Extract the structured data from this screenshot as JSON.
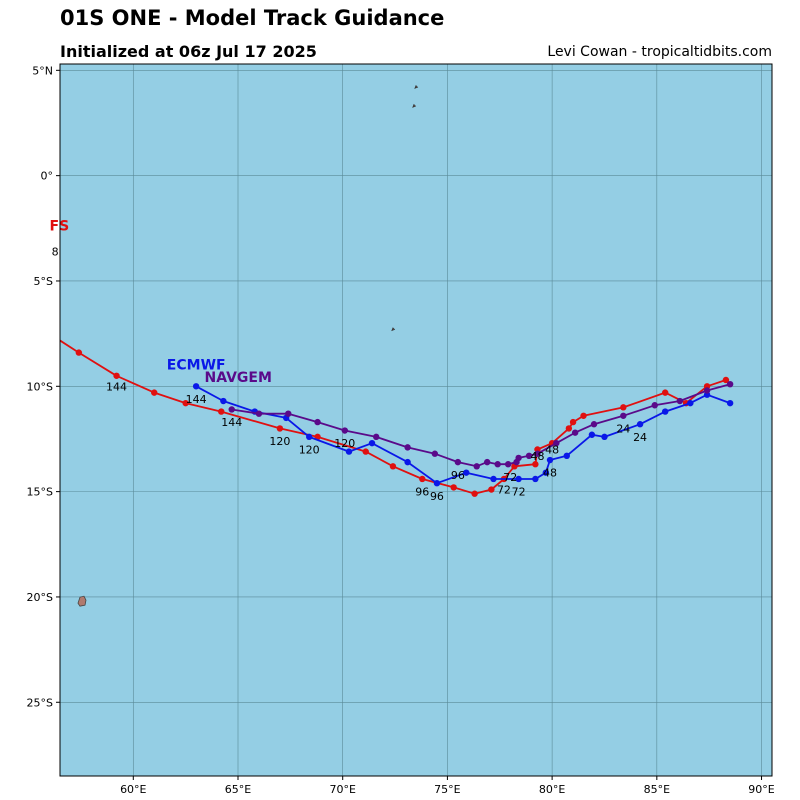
{
  "header": {
    "title": "01S ONE - Model Track Guidance",
    "subtitle": "Initialized at 06z Jul 17 2025",
    "credit": "Levi Cowan - tropicaltidbits.com"
  },
  "colors": {
    "ocean": "#94cee4",
    "grid": "#5a8a98",
    "land": "#b07a6e",
    "gfs": "#e01010",
    "ecmwf": "#0a18e8",
    "navgem": "#5a0a8a"
  },
  "map": {
    "lon_range": [
      56.5,
      90.5
    ],
    "lat_range": [
      -28.5,
      5.3
    ],
    "lon_ticks": [
      {
        "v": 60,
        "label": "60°E"
      },
      {
        "v": 65,
        "label": "65°E"
      },
      {
        "v": 70,
        "label": "70°E"
      },
      {
        "v": 75,
        "label": "75°E"
      },
      {
        "v": 80,
        "label": "80°E"
      },
      {
        "v": 85,
        "label": "85°E"
      },
      {
        "v": 90,
        "label": "90°E"
      }
    ],
    "lat_ticks": [
      {
        "v": 5,
        "label": "5°N"
      },
      {
        "v": 0,
        "label": "0°"
      },
      {
        "v": -5,
        "label": "5°S"
      },
      {
        "v": -10,
        "label": "10°S"
      },
      {
        "v": -15,
        "label": "15°S"
      },
      {
        "v": -20,
        "label": "20°S"
      },
      {
        "v": -25,
        "label": "25°S"
      }
    ],
    "islands": [
      {
        "name": "mauritius",
        "lon": 57.55,
        "lat": -20.2
      },
      {
        "name": "islet-a",
        "lon": 73.5,
        "lat": 4.2
      },
      {
        "name": "islet-b",
        "lon": 73.4,
        "lat": 3.3
      },
      {
        "name": "islet-c",
        "lon": 72.4,
        "lat": -7.3
      }
    ],
    "models": [
      {
        "name": "GFS",
        "color": "#e01010",
        "label": {
          "text": "FS",
          "lon": 56.0,
          "lat": -2.6
        },
        "sublabel": {
          "text": "8",
          "lon": 56.1,
          "lat": -3.8
        },
        "track": [
          [
            88.3,
            -9.7
          ],
          [
            87.4,
            -10.0
          ],
          [
            86.4,
            -10.8
          ],
          [
            85.4,
            -10.3
          ],
          [
            83.4,
            -11.0
          ],
          [
            81.5,
            -11.4
          ],
          [
            81.0,
            -11.7
          ],
          [
            80.8,
            -12.0
          ],
          [
            80.0,
            -12.7
          ],
          [
            79.3,
            -13.0
          ],
          [
            79.2,
            -13.7
          ],
          [
            78.2,
            -13.8
          ],
          [
            77.7,
            -14.4
          ],
          [
            77.1,
            -14.9
          ],
          [
            76.3,
            -15.1
          ],
          [
            75.3,
            -14.8
          ],
          [
            73.8,
            -14.4
          ],
          [
            72.4,
            -13.8
          ],
          [
            71.1,
            -13.1
          ],
          [
            68.8,
            -12.4
          ],
          [
            67.0,
            -12.0
          ],
          [
            64.2,
            -11.2
          ],
          [
            62.5,
            -10.8
          ],
          [
            61.0,
            -10.3
          ],
          [
            59.2,
            -9.5
          ],
          [
            57.4,
            -8.4
          ],
          [
            56.3,
            -7.7
          ]
        ],
        "hour_labels": [
          {
            "text": "144",
            "lon": 59.2,
            "lat": -10.0
          },
          {
            "text": "120",
            "lon": 67.0,
            "lat": -12.6
          },
          {
            "text": "96",
            "lon": 73.8,
            "lat": -15.0
          },
          {
            "text": "72",
            "lon": 77.7,
            "lat": -14.9
          },
          {
            "text": "48",
            "lon": 79.3,
            "lat": -13.3
          }
        ]
      },
      {
        "name": "ECMWF",
        "color": "#0a18e8",
        "label": {
          "text": "ECMWF",
          "lon": 61.6,
          "lat": -9.2
        },
        "track": [
          [
            88.5,
            -10.8
          ],
          [
            87.4,
            -10.4
          ],
          [
            86.6,
            -10.8
          ],
          [
            85.4,
            -11.2
          ],
          [
            84.2,
            -11.8
          ],
          [
            82.5,
            -12.4
          ],
          [
            81.9,
            -12.3
          ],
          [
            80.7,
            -13.3
          ],
          [
            79.9,
            -13.5
          ],
          [
            79.7,
            -14.1
          ],
          [
            79.2,
            -14.4
          ],
          [
            78.4,
            -14.4
          ],
          [
            77.2,
            -14.4
          ],
          [
            75.9,
            -14.1
          ],
          [
            74.5,
            -14.6
          ],
          [
            73.1,
            -13.6
          ],
          [
            71.4,
            -12.7
          ],
          [
            70.3,
            -13.1
          ],
          [
            68.4,
            -12.4
          ],
          [
            67.3,
            -11.5
          ],
          [
            65.8,
            -11.2
          ],
          [
            64.3,
            -10.7
          ],
          [
            63.0,
            -10.0
          ]
        ],
        "hour_labels": [
          {
            "text": "144",
            "lon": 63.0,
            "lat": -10.6
          },
          {
            "text": "120",
            "lon": 68.4,
            "lat": -13.0
          },
          {
            "text": "96",
            "lon": 74.5,
            "lat": -15.2
          },
          {
            "text": "72",
            "lon": 78.4,
            "lat": -15.0
          },
          {
            "text": "48",
            "lon": 79.9,
            "lat": -14.1
          },
          {
            "text": "24",
            "lon": 84.2,
            "lat": -12.4
          }
        ]
      },
      {
        "name": "NAVGEM",
        "color": "#5a0a8a",
        "label": {
          "text": "NAVGEM",
          "lon": 63.4,
          "lat": -9.8
        },
        "track": [
          [
            88.5,
            -9.9
          ],
          [
            87.4,
            -10.2
          ],
          [
            86.1,
            -10.7
          ],
          [
            84.9,
            -10.9
          ],
          [
            83.4,
            -11.4
          ],
          [
            82.0,
            -11.8
          ],
          [
            81.1,
            -12.2
          ],
          [
            80.2,
            -12.7
          ],
          [
            79.3,
            -13.2
          ],
          [
            78.9,
            -13.3
          ],
          [
            78.4,
            -13.4
          ],
          [
            78.3,
            -13.6
          ],
          [
            77.9,
            -13.7
          ],
          [
            77.4,
            -13.7
          ],
          [
            76.9,
            -13.6
          ],
          [
            76.4,
            -13.8
          ],
          [
            75.5,
            -13.6
          ],
          [
            74.4,
            -13.2
          ],
          [
            73.1,
            -12.9
          ],
          [
            71.6,
            -12.4
          ],
          [
            70.1,
            -12.1
          ],
          [
            68.8,
            -11.7
          ],
          [
            67.4,
            -11.3
          ],
          [
            66.0,
            -11.3
          ],
          [
            64.7,
            -11.1
          ]
        ],
        "hour_labels": [
          {
            "text": "144",
            "lon": 64.7,
            "lat": -11.7
          },
          {
            "text": "120",
            "lon": 70.1,
            "lat": -12.7
          },
          {
            "text": "96",
            "lon": 75.5,
            "lat": -14.2
          },
          {
            "text": "72",
            "lon": 78.0,
            "lat": -14.3
          },
          {
            "text": "48",
            "lon": 80.0,
            "lat": -13.0
          },
          {
            "text": "24",
            "lon": 83.4,
            "lat": -12.0
          }
        ]
      }
    ]
  }
}
